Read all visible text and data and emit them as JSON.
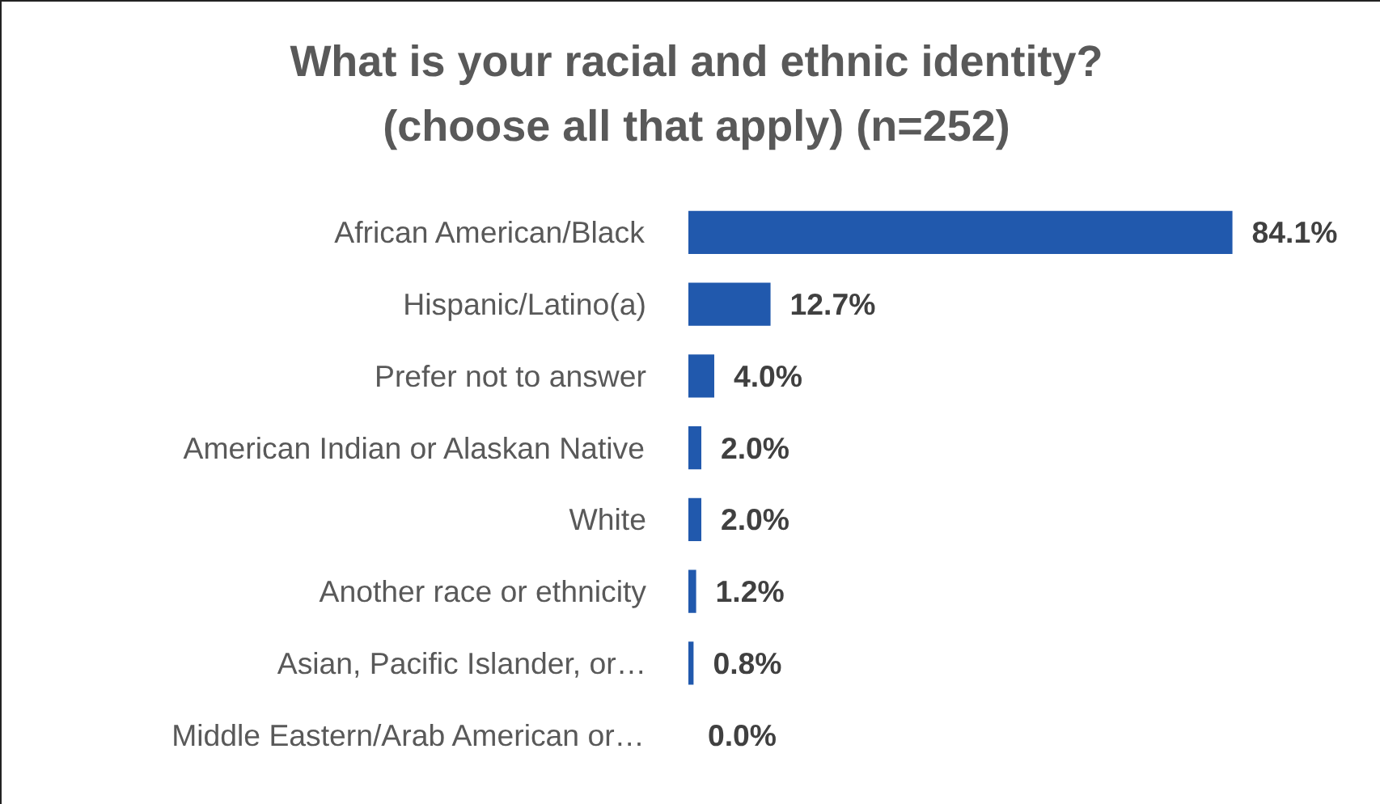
{
  "chart_data": {
    "type": "bar",
    "orientation": "horizontal",
    "title": "What is your racial and ethnic identity?\n(choose all that apply) (n=252)",
    "categories": [
      "African American/Black",
      "Hispanic/Latino(a)",
      "Prefer not to answer",
      "American Indian or Alaskan Native",
      "White",
      "Another race or ethnicity",
      "Asian, Pacific Islander, or…",
      "Middle Eastern/Arab American or…"
    ],
    "values": [
      84.1,
      12.7,
      4.0,
      2.0,
      2.0,
      1.2,
      0.8,
      0.0
    ],
    "value_labels": [
      "84.1%",
      "12.7%",
      "4.0%",
      "2.0%",
      "2.0%",
      "1.2%",
      "0.8%",
      "0.0%"
    ],
    "color": "#2159ad",
    "grid": false
  }
}
